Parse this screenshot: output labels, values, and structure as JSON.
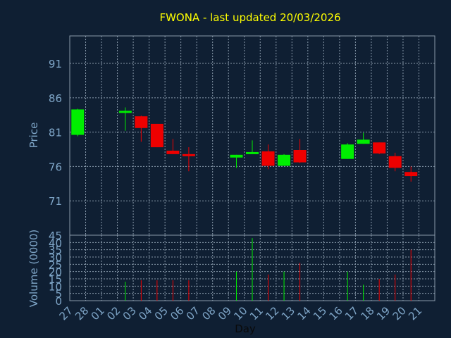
{
  "title": "FWONA - last updated 20/03/2026",
  "colors": {
    "background": "#0f1f33",
    "plot_border": "#8899aa",
    "grid": "#8899aa",
    "axis_text": "#7fa6c8",
    "title": "#ffff00",
    "up": "#00ee00",
    "down": "#ee0000"
  },
  "chart_data": [
    {
      "type": "candlestick",
      "name": "price",
      "ylabel": "Price",
      "ylim": [
        66,
        95
      ],
      "yticks": [
        71,
        76,
        81,
        86,
        91
      ],
      "grid": true,
      "categories": [
        "27",
        "28",
        "01",
        "02",
        "03",
        "04",
        "05",
        "06",
        "07",
        "08",
        "09",
        "10",
        "11",
        "12",
        "13",
        "14",
        "15",
        "16",
        "17",
        "18",
        "19",
        "20",
        "21"
      ],
      "candles": [
        {
          "day": "27",
          "open": 80.6,
          "high": 84.4,
          "low": 80.4,
          "close": 84.3
        },
        {
          "day": "02",
          "open": 83.8,
          "high": 84.6,
          "low": 81.2,
          "close": 84.1
        },
        {
          "day": "03",
          "open": 83.3,
          "high": 83.4,
          "low": 79.6,
          "close": 81.6
        },
        {
          "day": "04",
          "open": 82.2,
          "high": 82.2,
          "low": 78.8,
          "close": 78.8
        },
        {
          "day": "05",
          "open": 78.3,
          "high": 80.0,
          "low": 77.8,
          "close": 77.8
        },
        {
          "day": "06",
          "open": 77.8,
          "high": 78.8,
          "low": 75.3,
          "close": 77.6
        },
        {
          "day": "09",
          "open": 77.3,
          "high": 77.7,
          "low": 75.8,
          "close": 77.7
        },
        {
          "day": "10",
          "open": 78.0,
          "high": 79.8,
          "low": 77.9,
          "close": 78.1
        },
        {
          "day": "11",
          "open": 78.2,
          "high": 79.2,
          "low": 75.6,
          "close": 76.1
        },
        {
          "day": "12",
          "open": 76.1,
          "high": 77.8,
          "low": 76.1,
          "close": 77.7
        },
        {
          "day": "13",
          "open": 78.4,
          "high": 80.0,
          "low": 76.5,
          "close": 76.6
        },
        {
          "day": "16",
          "open": 77.1,
          "high": 79.4,
          "low": 77.1,
          "close": 79.2
        },
        {
          "day": "17",
          "open": 79.3,
          "high": 80.9,
          "low": 79.3,
          "close": 79.9
        },
        {
          "day": "18",
          "open": 79.5,
          "high": 79.5,
          "low": 77.8,
          "close": 77.9
        },
        {
          "day": "19",
          "open": 77.5,
          "high": 78.0,
          "low": 75.3,
          "close": 75.8
        },
        {
          "day": "20",
          "open": 75.2,
          "high": 76.0,
          "low": 73.8,
          "close": 74.6
        }
      ]
    },
    {
      "type": "bar",
      "name": "volume",
      "ylabel": "Volume (0000)",
      "xlabel": "Day",
      "ylim": [
        0,
        45
      ],
      "yticks": [
        0,
        5,
        10,
        15,
        20,
        25,
        30,
        35,
        40,
        45
      ],
      "grid": true,
      "categories": [
        "27",
        "28",
        "01",
        "02",
        "03",
        "04",
        "05",
        "06",
        "07",
        "08",
        "09",
        "10",
        "11",
        "12",
        "13",
        "14",
        "15",
        "16",
        "17",
        "18",
        "19",
        "20",
        "21"
      ],
      "bars": [
        {
          "day": "27",
          "value": 0,
          "dir": "up"
        },
        {
          "day": "02",
          "value": 13,
          "dir": "up"
        },
        {
          "day": "03",
          "value": 14,
          "dir": "down"
        },
        {
          "day": "04",
          "value": 14,
          "dir": "down"
        },
        {
          "day": "05",
          "value": 14,
          "dir": "down"
        },
        {
          "day": "06",
          "value": 14,
          "dir": "down"
        },
        {
          "day": "09",
          "value": 20,
          "dir": "up"
        },
        {
          "day": "10",
          "value": 43,
          "dir": "up"
        },
        {
          "day": "11",
          "value": 18,
          "dir": "down"
        },
        {
          "day": "12",
          "value": 20,
          "dir": "up"
        },
        {
          "day": "13",
          "value": 26,
          "dir": "down"
        },
        {
          "day": "16",
          "value": 20,
          "dir": "up"
        },
        {
          "day": "17",
          "value": 11,
          "dir": "up"
        },
        {
          "day": "18",
          "value": 15,
          "dir": "down"
        },
        {
          "day": "19",
          "value": 18,
          "dir": "down"
        },
        {
          "day": "20",
          "value": 35,
          "dir": "down"
        }
      ]
    }
  ]
}
